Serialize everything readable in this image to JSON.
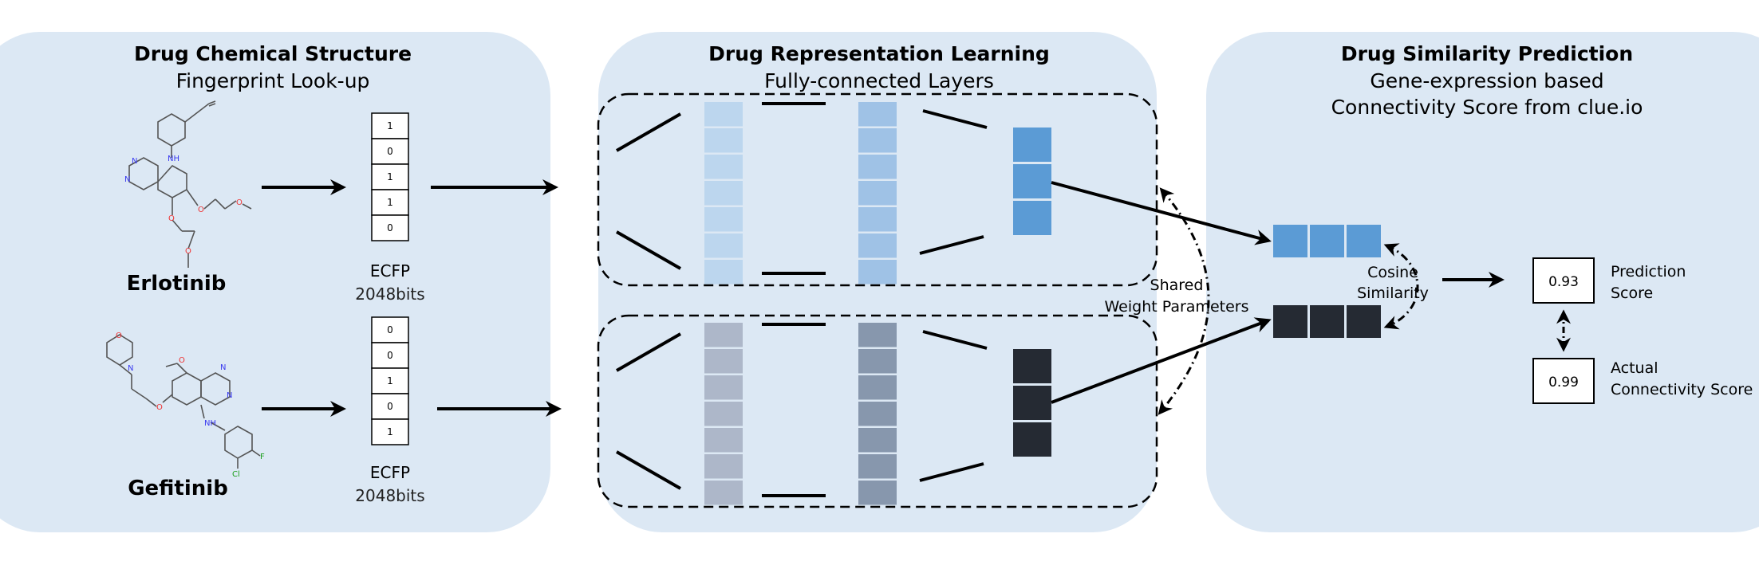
{
  "panels": {
    "structure": {
      "title": "Drug Chemical Structure",
      "subtitle": "Fingerprint Look-up"
    },
    "representation": {
      "title": "Drug Representation Learning",
      "subtitle": "Fully-connected Layers"
    },
    "similarity": {
      "title": "Drug Similarity Prediction",
      "subtitle1": "Gene-expression based",
      "subtitle2": "Connectivity Score from clue.io"
    }
  },
  "drugs": [
    {
      "name": "Erlotinib",
      "bits": [
        "1",
        "0",
        "1",
        "1",
        "0"
      ]
    },
    {
      "name": "Gefitinib",
      "bits": [
        "0",
        "0",
        "1",
        "0",
        "1"
      ]
    }
  ],
  "ecfp": {
    "label": "ECFP",
    "bits_label": "2048bits"
  },
  "shared": {
    "line1": "Shared",
    "line2": "Weight Parameters"
  },
  "cosine": {
    "line1": "Cosine",
    "line2": "Similarity"
  },
  "prediction": {
    "value": "0.93",
    "line1": "Prediction",
    "line2": "Score"
  },
  "actual": {
    "value": "0.99",
    "line1": "Actual",
    "line2": "Connectivity Score"
  },
  "atoms": {
    "N": "N",
    "NH": "NH",
    "O": "O",
    "Cl": "Cl",
    "F": "F"
  },
  "colors": {
    "panel_bg": "#dce8f4",
    "top_layer1": "#bcd6ee",
    "top_layer2": "#9fc2e6",
    "top_output": "#5b9bd5",
    "bottom_layer1": "#adb7c9",
    "bottom_layer2": "#8797ad",
    "bottom_output": "#252a33"
  }
}
